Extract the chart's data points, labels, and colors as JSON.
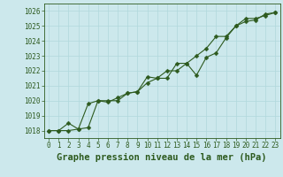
{
  "title": "Graphe pression niveau de la mer (hPa)",
  "background_color": "#cce8ec",
  "line_color": "#2d5a1e",
  "grid_color": "#b0d8dc",
  "xlim": [
    -0.5,
    23.5
  ],
  "ylim": [
    1017.5,
    1026.5
  ],
  "yticks": [
    1018,
    1019,
    1020,
    1021,
    1022,
    1023,
    1024,
    1025,
    1026
  ],
  "xticks": [
    0,
    1,
    2,
    3,
    4,
    5,
    6,
    7,
    8,
    9,
    10,
    11,
    12,
    13,
    14,
    15,
    16,
    17,
    18,
    19,
    20,
    21,
    22,
    23
  ],
  "series1": [
    1018.0,
    1018.0,
    1018.0,
    1018.1,
    1019.8,
    1020.0,
    1019.9,
    1020.2,
    1020.5,
    1020.6,
    1021.6,
    1021.5,
    1022.0,
    1022.0,
    1022.5,
    1021.7,
    1022.9,
    1023.2,
    1024.2,
    1025.0,
    1025.3,
    1025.4,
    1025.8,
    1025.9
  ],
  "series2": [
    1018.0,
    1018.0,
    1018.5,
    1018.1,
    1018.2,
    1020.0,
    1020.0,
    1020.0,
    1020.5,
    1020.6,
    1021.2,
    1021.5,
    1021.5,
    1022.5,
    1022.5,
    1023.0,
    1023.5,
    1024.3,
    1024.3,
    1025.0,
    1025.5,
    1025.5,
    1025.7,
    1025.9
  ],
  "tick_fontsize": 5.5,
  "title_fontsize": 7.5,
  "markersize": 2.5,
  "linewidth": 0.8
}
